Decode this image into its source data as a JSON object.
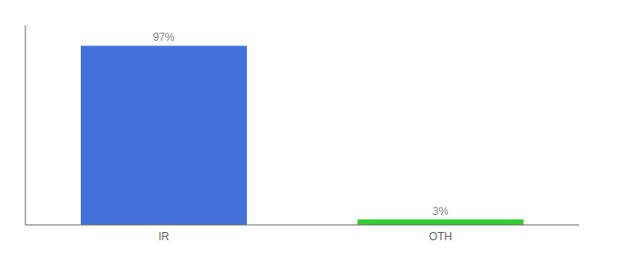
{
  "chart_data": {
    "type": "bar",
    "categories": [
      "IR",
      "OTH"
    ],
    "values": [
      97,
      3
    ],
    "value_labels": [
      "97%",
      "3%"
    ],
    "colors": [
      "#4472db",
      "#33cc33"
    ],
    "ylim": [
      0,
      108
    ],
    "grid": false,
    "data_labels": true,
    "tick_labels": "x"
  }
}
